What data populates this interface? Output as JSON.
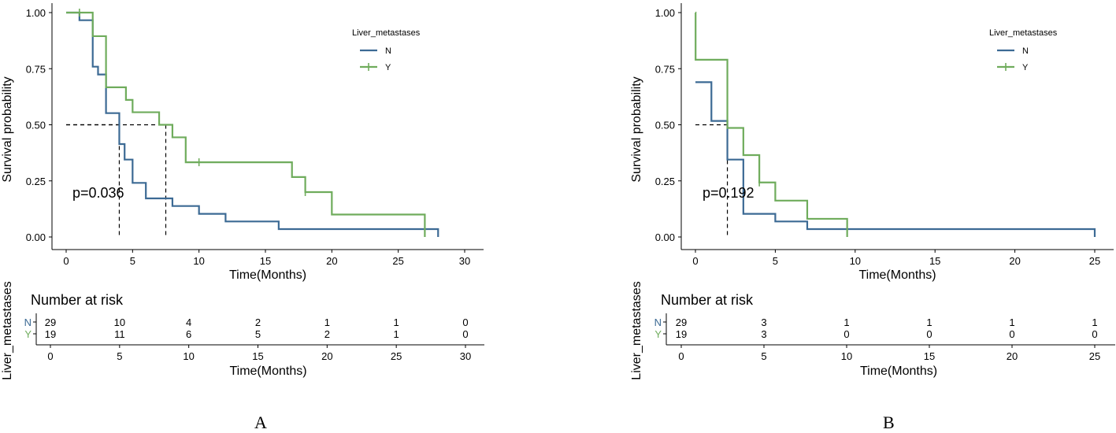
{
  "colors": {
    "N": "#3c6a94",
    "Y": "#6fac5c",
    "axis": "#000000",
    "median": "#000000"
  },
  "panels": [
    {
      "panel_label": "A",
      "risk_title": "Number at risk",
      "risk_ylabel": "Liver_metastases",
      "chart_data": {
        "type": "line",
        "subtype": "kaplan-meier",
        "xlabel": "Time(Months)",
        "ylabel": "Survival probability",
        "xlim": [
          0,
          30
        ],
        "ylim": [
          0,
          1
        ],
        "xticks": [
          0,
          5,
          10,
          15,
          20,
          25,
          30
        ],
        "yticks": [
          0.0,
          0.25,
          0.5,
          0.75,
          1.0
        ],
        "ytick_labels": [
          "0.00",
          "0.25",
          "0.50",
          "0.75",
          "1.00"
        ],
        "legend_title": "Liver_metastases",
        "legend_position": "top-right",
        "pvalue": "p=0.036",
        "medians": [
          4,
          7.5
        ],
        "series": [
          {
            "name": "N",
            "color_key": "N",
            "steps": [
              [
                0,
                1.0
              ],
              [
                1,
                0.966
              ],
              [
                2,
                0.759
              ],
              [
                2.4,
                0.724
              ],
              [
                3,
                0.552
              ],
              [
                4,
                0.414
              ],
              [
                4.4,
                0.345
              ],
              [
                5,
                0.241
              ],
              [
                6,
                0.172
              ],
              [
                8,
                0.138
              ],
              [
                10,
                0.103
              ],
              [
                12,
                0.069
              ],
              [
                16,
                0.035
              ],
              [
                28,
                0.0
              ]
            ],
            "end": 28,
            "censors": []
          },
          {
            "name": "Y",
            "color_key": "Y",
            "steps": [
              [
                0,
                1.0
              ],
              [
                2,
                0.895
              ],
              [
                3,
                0.667
              ],
              [
                4.5,
                0.611
              ],
              [
                5,
                0.556
              ],
              [
                7,
                0.5
              ],
              [
                8,
                0.444
              ],
              [
                9,
                0.333
              ],
              [
                17,
                0.267
              ],
              [
                18,
                0.2
              ],
              [
                20,
                0.1
              ],
              [
                27,
                0.0
              ]
            ],
            "end": 27,
            "censors": [
              [
                1,
                1.0
              ],
              [
                10,
                0.333
              ],
              [
                18,
                0.2
              ]
            ]
          }
        ],
        "risk_table": {
          "groups": [
            "N",
            "Y"
          ],
          "times": [
            0,
            5,
            10,
            15,
            20,
            25,
            30
          ],
          "N": [
            29,
            10,
            4,
            2,
            1,
            1,
            0
          ],
          "Y": [
            19,
            11,
            6,
            5,
            2,
            1,
            0
          ],
          "xlabel": "Time(Months)"
        }
      }
    },
    {
      "panel_label": "B",
      "risk_title": "Number at risk",
      "risk_ylabel": "Liver_metastases",
      "chart_data": {
        "type": "line",
        "subtype": "kaplan-meier",
        "xlabel": "Time(Months)",
        "ylabel": "Survival probability",
        "xlim": [
          0,
          25
        ],
        "ylim": [
          0,
          1
        ],
        "xticks": [
          0,
          5,
          10,
          15,
          20,
          25
        ],
        "yticks": [
          0.0,
          0.25,
          0.5,
          0.75,
          1.0
        ],
        "ytick_labels": [
          "0.00",
          "0.25",
          "0.50",
          "0.75",
          "1.00"
        ],
        "legend_title": "Liver_metastases",
        "legend_position": "top-right",
        "pvalue": "p=0.192",
        "medians": [
          2
        ],
        "series": [
          {
            "name": "N",
            "color_key": "N",
            "steps": [
              [
                0,
                0.69
              ],
              [
                1,
                0.517
              ],
              [
                2,
                0.345
              ],
              [
                3,
                0.103
              ],
              [
                5,
                0.069
              ],
              [
                7,
                0.035
              ],
              [
                25,
                0.0
              ]
            ],
            "end": 25,
            "censors": []
          },
          {
            "name": "Y",
            "color_key": "Y",
            "steps": [
              [
                0,
                1.0
              ],
              [
                0.01,
                0.79
              ],
              [
                2,
                0.486
              ],
              [
                3,
                0.365
              ],
              [
                4,
                0.243
              ],
              [
                5,
                0.162
              ],
              [
                7,
                0.081
              ],
              [
                9.5,
                0.0
              ]
            ],
            "end": 9.5,
            "censors": [
              [
                4,
                0.243
              ]
            ]
          }
        ],
        "risk_table": {
          "groups": [
            "N",
            "Y"
          ],
          "times": [
            0,
            5,
            10,
            15,
            20,
            25
          ],
          "N": [
            29,
            3,
            1,
            1,
            1,
            1
          ],
          "Y": [
            19,
            3,
            0,
            0,
            0,
            0
          ],
          "xlabel": "Time(Months)"
        }
      }
    }
  ]
}
